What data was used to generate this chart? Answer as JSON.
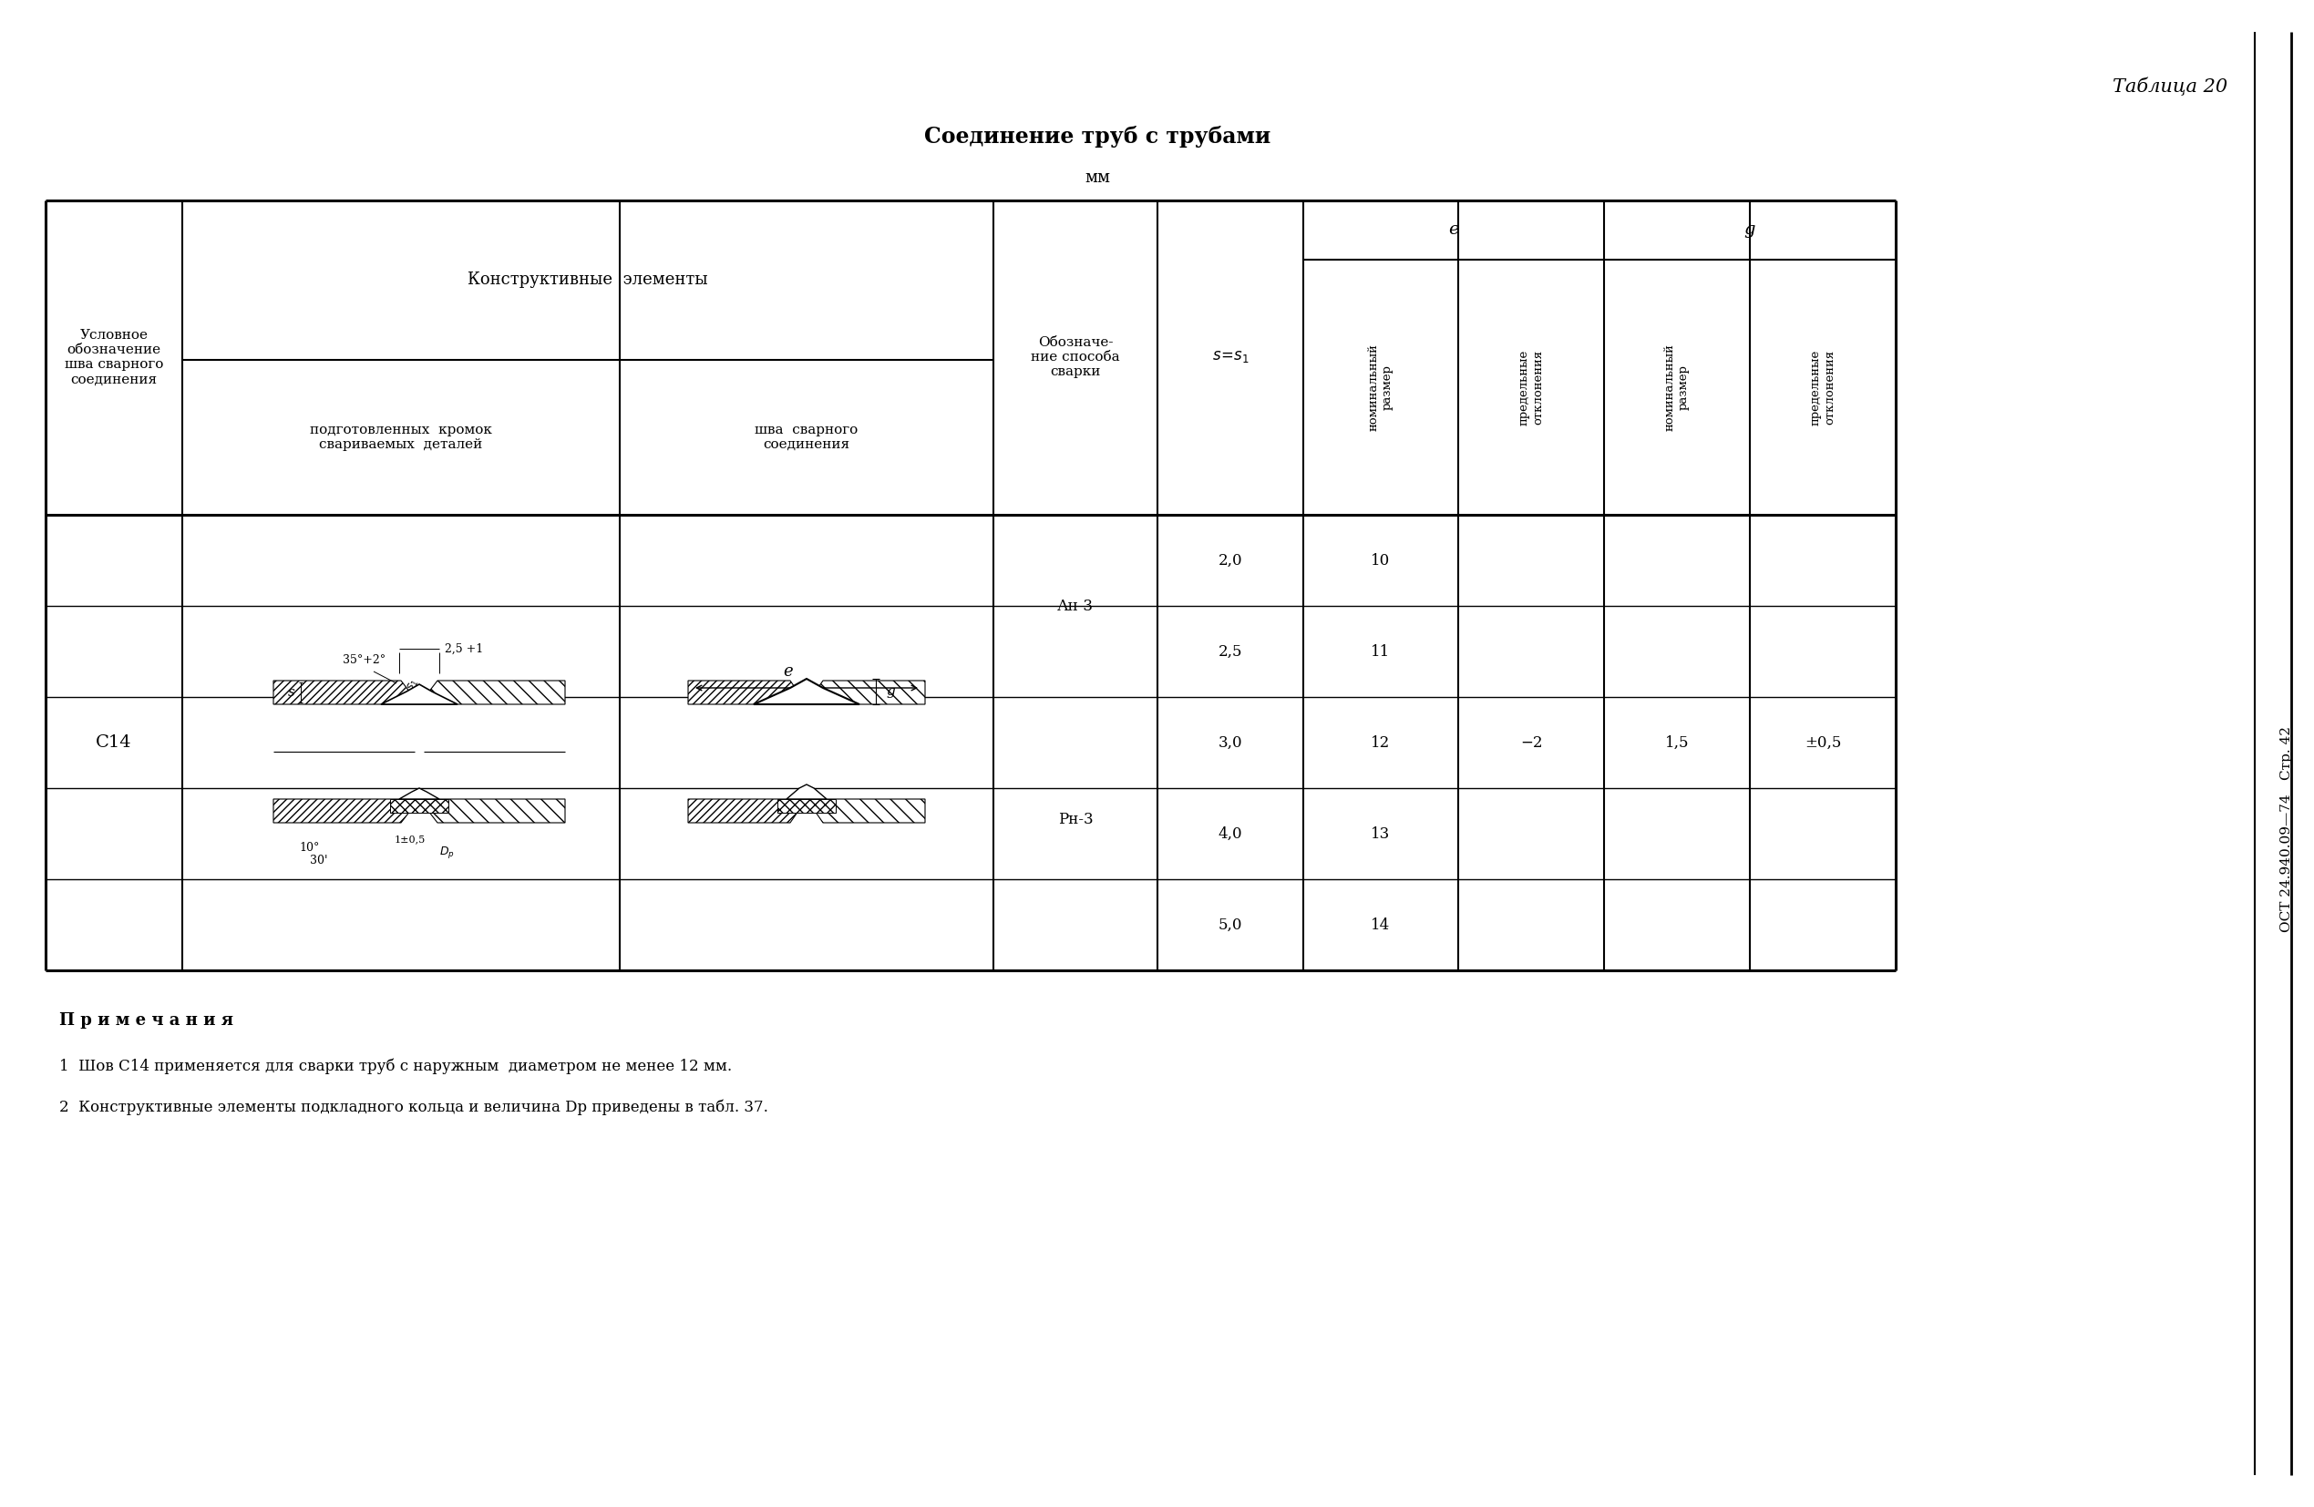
{
  "title": "Соединение труб с трубами",
  "subtitle": "мм",
  "table_number": "Таблица 20",
  "side_text_line1": "Стр. 42",
  "side_text_line2": "ОСТ 24.940.09—74",
  "header_col1": "Условное\nобозначение\nшва сварного\nсоединения",
  "header_konstr": "Конструктивные  элементы",
  "header_podg": "подготовленных  кромок\nсвариваемых  деталей",
  "header_shva": "шва  сварного\nсоединения",
  "header_oboz": "Обозначе-\nние способа\nсварки",
  "header_s": "s=s₁",
  "header_e": "e",
  "header_g": "g",
  "header_e_nom": "номинальный\nразмер",
  "header_e_dev": "предельные\nотклонения",
  "header_g_nom": "номинальный\nразмер",
  "header_g_dev": "предельные\nотклонения",
  "data_s": [
    "2,0",
    "2,5",
    "3,0",
    "4,0",
    "5,0"
  ],
  "data_e_nom": [
    "10",
    "11",
    "12",
    "13",
    "14"
  ],
  "data_e_dev": [
    "",
    "",
    "−2",
    "",
    ""
  ],
  "data_g_nom": [
    "",
    "",
    "1,5",
    "",
    ""
  ],
  "data_g_dev": [
    "",
    "",
    "±0,5",
    "",
    ""
  ],
  "weld_label": "С14",
  "method_an3": "Ан-3",
  "method_rn3": "Рн-3",
  "notes_header": "П р и м е ч а н и я",
  "note1": "1  Шов С14 применяется для сварки труб с наружным  диаметром не менее 12 мм.",
  "note2_pre": "2  Конструктивные элементы подкладного кольца и величина ",
  "note2_italic": "D",
  "note2_sub": "р",
  "note2_post": " приведены в табл. 37.",
  "bg_color": "#ffffff",
  "text_color": "#000000"
}
